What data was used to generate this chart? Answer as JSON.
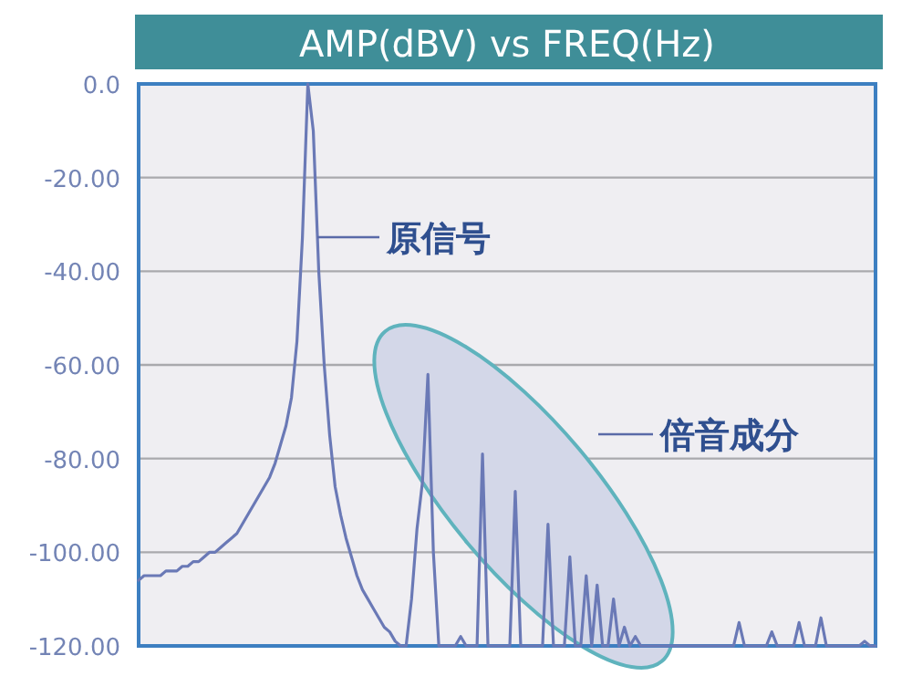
{
  "chart_data": {
    "type": "line",
    "title": "AMP(dBV) vs FREQ(Hz)",
    "categories": [
      null,
      null,
      null,
      null,
      null,
      null,
      null,
      null,
      null,
      null,
      null,
      null,
      null,
      null,
      null,
      null,
      null,
      null,
      null,
      null,
      null,
      null,
      null,
      null,
      null,
      null,
      null,
      null,
      null,
      null,
      null,
      null,
      null,
      null,
      null,
      null,
      null,
      null,
      null,
      null,
      null,
      null,
      null,
      null,
      null,
      null,
      null,
      null,
      null,
      null,
      null,
      null,
      null,
      null,
      null,
      null,
      null,
      null,
      null,
      null,
      null,
      null,
      null,
      null,
      null,
      null,
      null,
      null,
      null,
      null,
      null,
      null,
      null,
      null,
      null,
      null,
      null,
      null,
      null,
      null,
      null,
      null,
      null,
      null,
      null,
      null,
      null,
      null,
      null,
      null,
      null,
      null,
      null,
      null,
      null,
      null,
      null,
      null,
      null,
      null,
      null,
      null,
      null,
      null,
      null,
      null,
      null,
      null,
      null,
      null,
      null,
      null,
      null,
      null,
      null,
      null,
      null,
      null,
      null,
      null,
      null,
      null,
      null,
      null,
      null,
      null,
      null,
      null,
      null,
      null,
      null,
      null,
      null,
      null,
      null,
      null
    ],
    "series": [
      {
        "color": "#6a79b6",
        "values": [
          -106,
          -105,
          -105,
          -105,
          -105,
          -104,
          -104,
          -104,
          -103,
          -103,
          -102,
          -102,
          -101,
          -100,
          -100,
          -99,
          -98,
          -97,
          -96,
          -94,
          -92,
          -90,
          -88,
          -86,
          -84,
          -81,
          -77,
          -73,
          -67,
          -55,
          -33,
          0,
          -10,
          -40,
          -60,
          -75,
          -86,
          -92,
          -97,
          -101,
          -105,
          -108,
          -110,
          -112,
          -114,
          -116,
          -117,
          -119,
          -120,
          -120,
          -110,
          -95,
          -85,
          -62,
          -100,
          -120,
          -120,
          -120,
          -120,
          -118,
          -120,
          -120,
          -120,
          -79,
          -120,
          -120,
          -120,
          -120,
          -120,
          -87,
          -120,
          -120,
          -120,
          -120,
          -120,
          -94,
          -120,
          -120,
          -120,
          -101,
          -120,
          -120,
          -105,
          -120,
          -107,
          -120,
          -120,
          -110,
          -120,
          -116,
          -120,
          -118,
          -120,
          -120,
          -120,
          -120,
          -120,
          -120,
          -120,
          -120,
          -120,
          -120,
          -120,
          -120,
          -120,
          -120,
          -120,
          -120,
          -120,
          -120,
          -115,
          -120,
          -120,
          -120,
          -120,
          -120,
          -117,
          -120,
          -120,
          -120,
          -120,
          -115,
          -120,
          -120,
          -120,
          -114,
          -120,
          -120,
          -120,
          -120,
          -120,
          -120,
          -120,
          -119,
          -120,
          -120
        ]
      }
    ],
    "ylim": [
      -120,
      0
    ],
    "yticks": [
      {
        "value": 0,
        "label": "0.0"
      },
      {
        "value": -20,
        "label": "-20.00"
      },
      {
        "value": -40,
        "label": "-40.00"
      },
      {
        "value": -60,
        "label": "-60.00"
      },
      {
        "value": -80,
        "label": "-80.00"
      },
      {
        "value": -100,
        "label": "-100.00"
      },
      {
        "value": -120,
        "label": "-120.00"
      }
    ],
    "grid": "y",
    "tick_labels": "y",
    "marker": "none",
    "line_style": "solid",
    "annotations": [
      "原信号",
      "倍音成分"
    ]
  }
}
